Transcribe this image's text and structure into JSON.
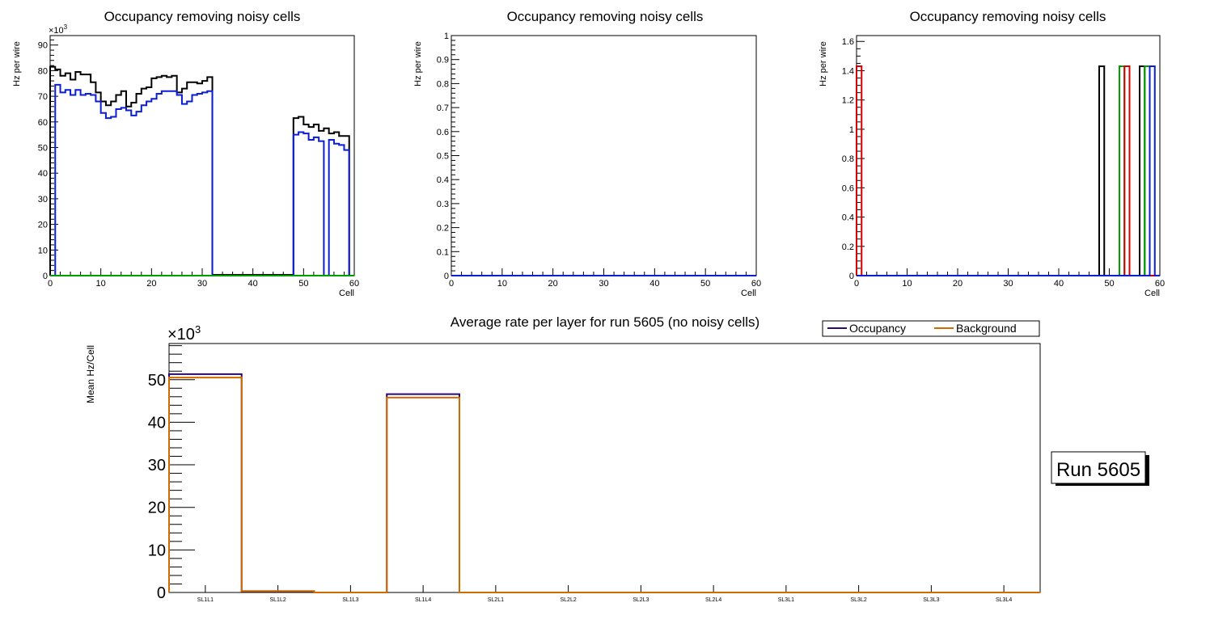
{
  "chart_data": [
    {
      "type": "histogram",
      "title": "Occupancy removing noisy cells",
      "xlabel": "Cell",
      "ylabel": "Hz per wire",
      "y_exponent_label": "×10",
      "y_exponent_power": "3",
      "xlim": [
        0,
        60
      ],
      "ylim": [
        0,
        93.7
      ],
      "xticks": [
        "0",
        "10",
        "20",
        "30",
        "40",
        "50",
        "60"
      ],
      "yticks": [
        "0",
        "10",
        "20",
        "30",
        "40",
        "50",
        "60",
        "70",
        "80",
        "90"
      ],
      "series": [
        {
          "name": "black",
          "color": "#000000",
          "values": [
            81.5,
            80.5,
            78,
            79,
            76.5,
            79.5,
            78.5,
            78.5,
            75.5,
            71.5,
            68,
            66.5,
            68,
            70.5,
            72,
            66,
            67.5,
            71,
            73,
            73.5,
            77,
            77.5,
            78,
            77.5,
            78,
            71.5,
            73,
            75.5,
            75.5,
            75,
            76,
            77.5,
            0.3,
            0.3,
            0.3,
            0.3,
            0.3,
            0.3,
            0.3,
            0.3,
            0.3,
            0.3,
            0.3,
            0.3,
            0.3,
            0.3,
            0.3,
            0.3,
            61.5,
            62,
            59,
            58,
            59,
            56.5,
            57.5,
            55.5,
            56,
            54.5,
            54.5,
            0
          ]
        },
        {
          "name": "blue",
          "color": "#0a1ed2",
          "values": [
            0,
            74.5,
            71.5,
            72.5,
            70.5,
            72.5,
            70.5,
            71,
            70.5,
            68,
            63.5,
            61.5,
            62,
            65,
            65.5,
            64.5,
            62.5,
            64,
            66.5,
            68,
            69,
            71,
            72,
            72,
            72,
            70.5,
            67,
            68,
            70.5,
            71,
            71.5,
            72,
            0,
            0,
            0,
            0,
            0,
            0,
            0,
            0,
            0,
            0,
            0,
            0,
            0,
            0,
            0,
            0,
            55,
            56,
            55.5,
            53,
            54,
            52.5,
            0,
            53,
            51.5,
            51,
            49,
            0
          ]
        },
        {
          "name": "green",
          "color": "#00a000",
          "values": [
            0,
            0,
            0,
            0,
            0,
            0,
            0,
            0,
            0,
            0,
            0,
            0,
            0,
            0,
            0,
            0,
            0,
            0,
            0,
            0,
            0,
            0,
            0,
            0,
            0,
            0,
            0,
            0,
            0,
            0,
            0,
            0,
            0,
            0,
            0,
            0,
            0,
            0,
            0,
            0,
            0,
            0,
            0,
            0,
            0,
            0,
            0,
            0,
            0,
            0,
            0,
            0,
            0,
            0,
            0,
            0,
            0,
            0,
            0,
            0
          ]
        }
      ]
    },
    {
      "type": "histogram",
      "title": "Occupancy removing noisy cells",
      "xlabel": "Cell",
      "ylabel": "Hz per wire",
      "xlim": [
        0,
        60
      ],
      "ylim": [
        0,
        1
      ],
      "xticks": [
        "0",
        "10",
        "20",
        "30",
        "40",
        "50",
        "60"
      ],
      "yticks": [
        "0",
        "0.1",
        "0.2",
        "0.3",
        "0.4",
        "0.5",
        "0.6",
        "0.7",
        "0.8",
        "0.9",
        "1"
      ],
      "series": [
        {
          "name": "blue",
          "color": "#0a1ed2",
          "values": [
            0,
            0,
            0,
            0,
            0,
            0,
            0,
            0,
            0,
            0,
            0,
            0,
            0,
            0,
            0,
            0,
            0,
            0,
            0,
            0,
            0,
            0,
            0,
            0,
            0,
            0,
            0,
            0,
            0,
            0,
            0,
            0,
            0,
            0,
            0,
            0,
            0,
            0,
            0,
            0,
            0,
            0,
            0,
            0,
            0,
            0,
            0,
            0,
            0,
            0,
            0,
            0,
            0,
            0,
            0,
            0,
            0,
            0,
            0,
            0
          ]
        }
      ]
    },
    {
      "type": "histogram",
      "title": "Occupancy removing noisy cells",
      "xlabel": "Cell",
      "ylabel": "Hz per wire",
      "xlim": [
        0,
        60
      ],
      "ylim": [
        0,
        1.64
      ],
      "xticks": [
        "0",
        "10",
        "20",
        "30",
        "40",
        "50",
        "60"
      ],
      "yticks": [
        "0",
        "0.2",
        "0.4",
        "0.6",
        "0.8",
        "1",
        "1.2",
        "1.4",
        "1.6"
      ],
      "series": [
        {
          "name": "black",
          "color": "#000000",
          "values": [
            0,
            0,
            0,
            0,
            0,
            0,
            0,
            0,
            0,
            0,
            0,
            0,
            0,
            0,
            0,
            0,
            0,
            0,
            0,
            0,
            0,
            0,
            0,
            0,
            0,
            0,
            0,
            0,
            0,
            0,
            0,
            0,
            0,
            0,
            0,
            0,
            0,
            0,
            0,
            0,
            0,
            0,
            0,
            0,
            0,
            0,
            0,
            0,
            1.43,
            0,
            0,
            0,
            0,
            0,
            0,
            0,
            1.43,
            0,
            0,
            0
          ]
        },
        {
          "name": "green",
          "color": "#00a000",
          "values": [
            0,
            0,
            0,
            0,
            0,
            0,
            0,
            0,
            0,
            0,
            0,
            0,
            0,
            0,
            0,
            0,
            0,
            0,
            0,
            0,
            0,
            0,
            0,
            0,
            0,
            0,
            0,
            0,
            0,
            0,
            0,
            0,
            0,
            0,
            0,
            0,
            0,
            0,
            0,
            0,
            0,
            0,
            0,
            0,
            0,
            0,
            0,
            0,
            0,
            0,
            0,
            0,
            1.43,
            0,
            0,
            0,
            0,
            1.43,
            0,
            0
          ]
        },
        {
          "name": "red",
          "color": "#d40000",
          "values": [
            1.43,
            0,
            0,
            0,
            0,
            0,
            0,
            0,
            0,
            0,
            0,
            0,
            0,
            0,
            0,
            0,
            0,
            0,
            0,
            0,
            0,
            0,
            0,
            0,
            0,
            0,
            0,
            0,
            0,
            0,
            0,
            0,
            0,
            0,
            0,
            0,
            0,
            0,
            0,
            0,
            0,
            0,
            0,
            0,
            0,
            0,
            0,
            0,
            0,
            0,
            0,
            0,
            0,
            1.43,
            0,
            0,
            0,
            0,
            0,
            0
          ]
        },
        {
          "name": "blue",
          "color": "#0a1ed2",
          "values": [
            0,
            0,
            0,
            0,
            0,
            0,
            0,
            0,
            0,
            0,
            0,
            0,
            0,
            0,
            0,
            0,
            0,
            0,
            0,
            0,
            0,
            0,
            0,
            0,
            0,
            0,
            0,
            0,
            0,
            0,
            0,
            0,
            0,
            0,
            0,
            0,
            0,
            0,
            0,
            0,
            0,
            0,
            0,
            0,
            0,
            0,
            0,
            0,
            0,
            0,
            0,
            0,
            0,
            0,
            0,
            0,
            0,
            0,
            1.43,
            0
          ]
        }
      ]
    },
    {
      "type": "histogram",
      "title": "Average rate per layer for run 5605 (no noisy cells)",
      "xlabel": "",
      "ylabel": "Mean Hz/Cell",
      "y_exponent_label": "×10",
      "y_exponent_power": "3",
      "ylim": [
        0,
        58.5
      ],
      "categories": [
        "SL1L1",
        "SL1L2",
        "SL1L3",
        "SL1L4",
        "SL2L1",
        "SL2L2",
        "SL2L3",
        "SL2L4",
        "SL3L1",
        "SL3L2",
        "SL3L3",
        "SL3L4"
      ],
      "yticks": [
        "0",
        "10",
        "20",
        "30",
        "40",
        "50"
      ],
      "legend": {
        "position": "top-right"
      },
      "series": [
        {
          "name": "Occupancy",
          "color": "#2a0a6e",
          "values": [
            51.3,
            0.3,
            0,
            46.6,
            0,
            0,
            0,
            0,
            0,
            0,
            0,
            0
          ]
        },
        {
          "name": "Background",
          "color": "#d26a00",
          "values": [
            50.5,
            0.3,
            0,
            45.8,
            0,
            0,
            0,
            0,
            0,
            0,
            0,
            0
          ]
        }
      ]
    }
  ],
  "run_label": "Run 5605"
}
